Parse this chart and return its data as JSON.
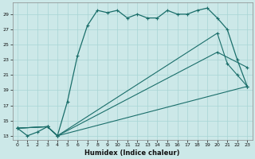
{
  "xlabel": "Humidex (Indice chaleur)",
  "xlim": [
    -0.5,
    23.5
  ],
  "ylim": [
    12.5,
    30.5
  ],
  "yticks": [
    13,
    15,
    17,
    19,
    21,
    23,
    25,
    27,
    29
  ],
  "xticks": [
    0,
    1,
    2,
    3,
    4,
    5,
    6,
    7,
    8,
    9,
    10,
    11,
    12,
    13,
    14,
    15,
    16,
    17,
    18,
    19,
    20,
    21,
    22,
    23
  ],
  "bg_color": "#cce8e8",
  "grid_color": "#a8d5d5",
  "line_color": "#1a6e6a",
  "line1_x": [
    0,
    1,
    2,
    3,
    4,
    5,
    6,
    7,
    8,
    9,
    10,
    11,
    12,
    13,
    14,
    15,
    16,
    17,
    18,
    19,
    20,
    21,
    22,
    23
  ],
  "line1_y": [
    14.0,
    13.0,
    13.5,
    14.2,
    13.0,
    17.5,
    23.5,
    27.5,
    29.5,
    29.2,
    29.5,
    28.5,
    29.0,
    28.5,
    28.5,
    29.5,
    29.0,
    29.0,
    29.5,
    29.8,
    28.5,
    27.0,
    23.0,
    19.5
  ],
  "line2_x": [
    0,
    3,
    4,
    20,
    21,
    22,
    23
  ],
  "line2_y": [
    14.0,
    14.2,
    13.0,
    26.5,
    22.5,
    21.0,
    19.5
  ],
  "line3_x": [
    0,
    3,
    4,
    20,
    23
  ],
  "line3_y": [
    14.0,
    14.2,
    13.0,
    24.0,
    22.0
  ],
  "line4_x": [
    0,
    3,
    4,
    23
  ],
  "line4_y": [
    14.0,
    14.2,
    13.0,
    19.5
  ]
}
